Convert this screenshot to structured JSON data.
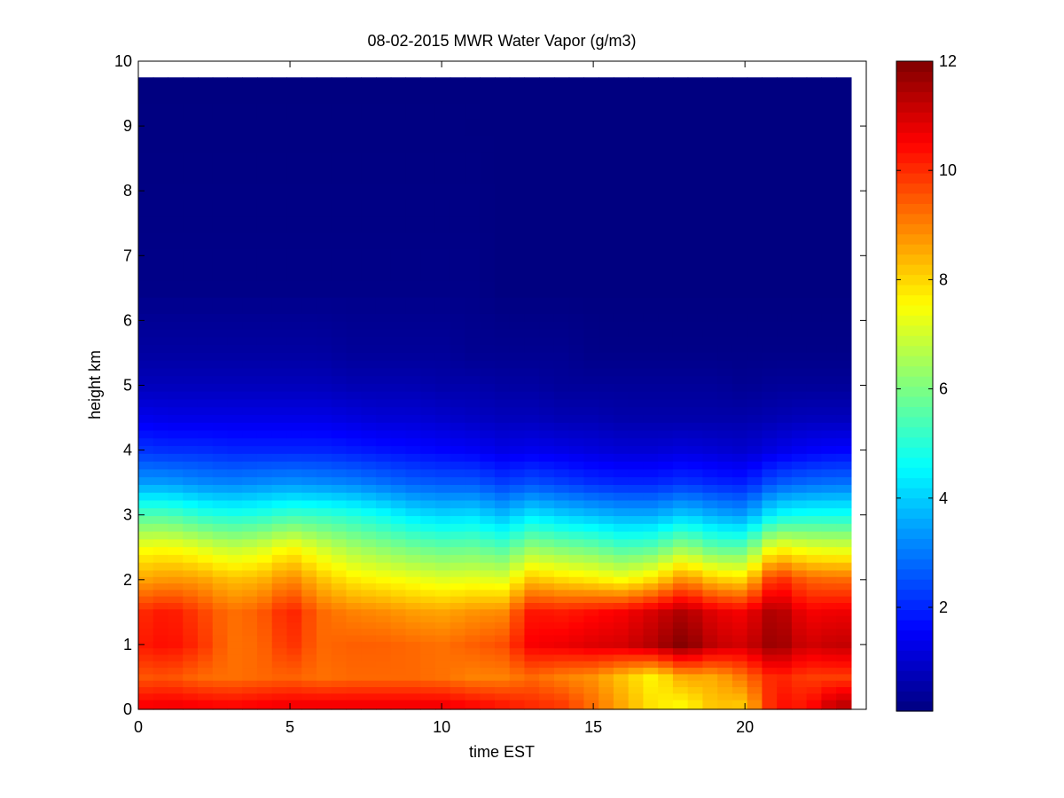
{
  "chart_data": {
    "type": "heatmap",
    "title": "08-02-2015 MWR Water Vapor (g/m3)",
    "xlabel": "time EST",
    "ylabel": "height km",
    "xlim": [
      0,
      24
    ],
    "ylim": [
      0,
      10
    ],
    "xticks": [
      0,
      5,
      10,
      15,
      20
    ],
    "yticks": [
      0,
      1,
      2,
      3,
      4,
      5,
      6,
      7,
      8,
      9,
      10
    ],
    "colorbar": {
      "colormap": "jet",
      "range": [
        0.1,
        12
      ],
      "ticks": [
        2,
        4,
        6,
        8,
        10,
        12
      ]
    },
    "time_range": [
      0,
      23.5
    ],
    "height_top": 9.75,
    "time_anchors_hours": [
      0,
      1,
      2,
      3,
      4,
      5,
      6,
      7,
      8,
      9,
      10,
      11,
      12,
      13,
      14,
      15,
      16,
      17,
      18,
      19,
      20,
      21,
      22,
      23
    ],
    "profile_anchor_heights_km": [
      0.1,
      0.5,
      1.0,
      1.5,
      2.0,
      2.5,
      3.0,
      3.5,
      4.0,
      4.5,
      5.0,
      5.5,
      6.5,
      9.75
    ],
    "profiles_g_m3": [
      [
        10.5,
        9.5,
        10.2,
        10.0,
        8.6,
        7.4,
        5.5,
        3.4,
        2.2,
        1.4,
        0.8,
        0.5,
        0.2,
        0.1
      ],
      [
        10.6,
        9.6,
        10.4,
        10.3,
        8.8,
        7.5,
        5.5,
        3.4,
        2.1,
        1.3,
        0.8,
        0.5,
        0.2,
        0.1
      ],
      [
        10.5,
        9.3,
        10.0,
        9.8,
        8.7,
        7.2,
        5.1,
        3.2,
        2.1,
        1.3,
        0.8,
        0.5,
        0.2,
        0.1
      ],
      [
        10.4,
        9.2,
        9.2,
        9.2,
        8.3,
        6.8,
        4.9,
        3.1,
        2.0,
        1.3,
        0.8,
        0.5,
        0.2,
        0.1
      ],
      [
        10.5,
        9.3,
        9.3,
        9.4,
        8.4,
        7.0,
        5.0,
        3.2,
        2.0,
        1.3,
        0.8,
        0.5,
        0.2,
        0.1
      ],
      [
        10.6,
        9.4,
        10.0,
        10.2,
        9.0,
        7.6,
        5.3,
        3.3,
        2.0,
        1.3,
        0.8,
        0.5,
        0.2,
        0.1
      ],
      [
        10.6,
        9.2,
        9.3,
        9.3,
        8.3,
        7.0,
        5.2,
        3.2,
        2.0,
        1.3,
        0.8,
        0.5,
        0.2,
        0.1
      ],
      [
        10.6,
        9.3,
        9.4,
        9.0,
        7.8,
        6.5,
        5.0,
        3.1,
        1.9,
        1.2,
        0.7,
        0.4,
        0.2,
        0.1
      ],
      [
        10.6,
        9.3,
        9.4,
        8.9,
        7.6,
        6.2,
        4.7,
        2.9,
        1.8,
        1.1,
        0.7,
        0.4,
        0.2,
        0.1
      ],
      [
        10.6,
        9.3,
        9.3,
        8.7,
        7.4,
        5.9,
        4.3,
        2.7,
        1.7,
        1.1,
        0.7,
        0.4,
        0.2,
        0.1
      ],
      [
        10.6,
        9.2,
        9.2,
        8.6,
        7.2,
        5.7,
        4.1,
        2.6,
        1.6,
        1.0,
        0.6,
        0.4,
        0.2,
        0.1
      ],
      [
        10.4,
        9.0,
        9.4,
        8.8,
        7.3,
        5.8,
        4.2,
        2.6,
        1.5,
        0.9,
        0.6,
        0.3,
        0.2,
        0.1
      ],
      [
        10.2,
        9.0,
        9.6,
        8.9,
        7.2,
        5.5,
        3.8,
        2.3,
        1.3,
        0.8,
        0.5,
        0.3,
        0.1,
        0.1
      ],
      [
        10.0,
        9.3,
        10.6,
        10.3,
        8.3,
        6.3,
        4.3,
        2.5,
        1.4,
        0.8,
        0.5,
        0.3,
        0.1,
        0.1
      ],
      [
        9.8,
        9.0,
        10.7,
        10.2,
        8.0,
        6.0,
        4.0,
        2.3,
        1.3,
        0.7,
        0.4,
        0.3,
        0.1,
        0.1
      ],
      [
        9.2,
        8.8,
        10.9,
        10.4,
        7.8,
        5.8,
        3.8,
        2.1,
        1.2,
        0.7,
        0.4,
        0.2,
        0.1,
        0.1
      ],
      [
        8.5,
        8.2,
        11.0,
        10.6,
        7.5,
        5.4,
        3.6,
        2.0,
        1.1,
        0.6,
        0.4,
        0.2,
        0.1,
        0.1
      ],
      [
        7.8,
        7.6,
        11.4,
        11.0,
        8.0,
        5.6,
        3.6,
        2.0,
        1.1,
        0.6,
        0.4,
        0.2,
        0.1,
        0.1
      ],
      [
        7.6,
        8.6,
        12.0,
        11.5,
        9.0,
        6.4,
        4.0,
        2.2,
        1.2,
        0.6,
        0.4,
        0.2,
        0.1,
        0.1
      ],
      [
        8.3,
        8.5,
        11.2,
        10.8,
        8.2,
        5.6,
        3.6,
        2.0,
        1.1,
        0.6,
        0.4,
        0.2,
        0.1,
        0.1
      ],
      [
        8.2,
        9.2,
        11.0,
        10.6,
        8.0,
        5.6,
        3.4,
        1.9,
        1.0,
        0.6,
        0.3,
        0.2,
        0.1,
        0.1
      ],
      [
        10.4,
        10.2,
        11.8,
        11.6,
        10.2,
        7.6,
        4.6,
        2.6,
        1.3,
        0.7,
        0.4,
        0.2,
        0.1,
        0.1
      ],
      [
        10.2,
        9.8,
        11.0,
        10.6,
        9.4,
        7.2,
        4.8,
        2.8,
        1.5,
        0.8,
        0.4,
        0.2,
        0.1,
        0.1
      ],
      [
        11.2,
        9.8,
        11.2,
        10.7,
        9.3,
        7.1,
        4.8,
        2.9,
        1.6,
        0.8,
        0.4,
        0.2,
        0.1,
        0.1
      ]
    ]
  }
}
